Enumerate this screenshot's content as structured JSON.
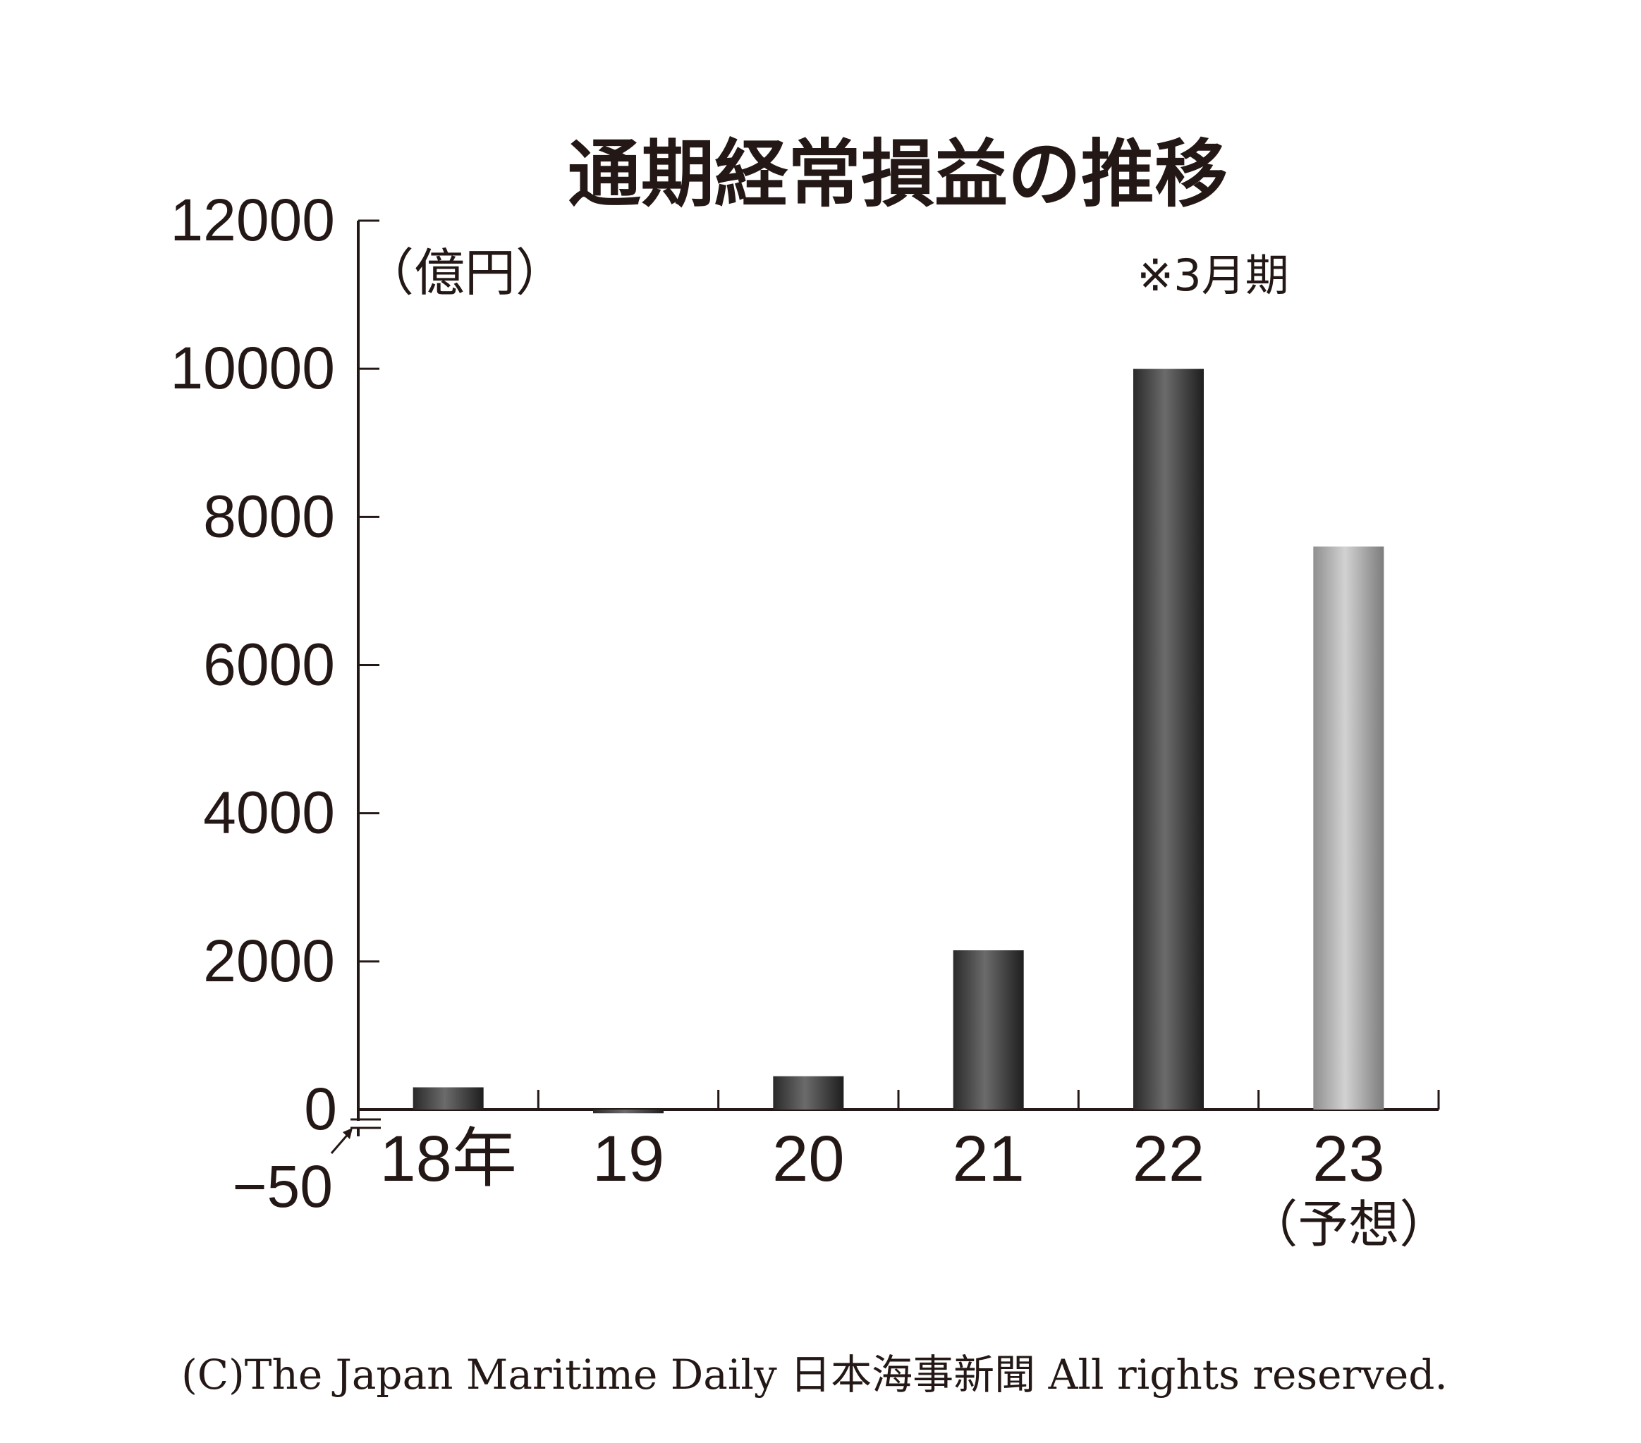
{
  "chart_data": {
    "type": "bar",
    "title": "通期経常損益の推移",
    "unit_label": "（億円）",
    "note": "※3月期",
    "categories": [
      "18年",
      "19",
      "20",
      "21",
      "22",
      "23"
    ],
    "category_sublabels": [
      "",
      "",
      "",
      "",
      "",
      "（予想）"
    ],
    "values": [
      300,
      -50,
      450,
      2150,
      10000,
      7600
    ],
    "forecast_flags": [
      false,
      false,
      false,
      false,
      false,
      true
    ],
    "yticks": [
      0,
      2000,
      4000,
      6000,
      8000,
      10000,
      12000
    ],
    "ylim": [
      -50,
      12000
    ],
    "annotations": [
      {
        "label": "-50",
        "target": "19"
      }
    ],
    "colors": {
      "actual": "#3a3a3a",
      "forecast": "#b0b0b0",
      "axis": "#231815"
    },
    "legend": "none",
    "grid": false
  },
  "copyright": "(C)The Japan Maritime Daily 日本海事新聞 All rights reserved."
}
